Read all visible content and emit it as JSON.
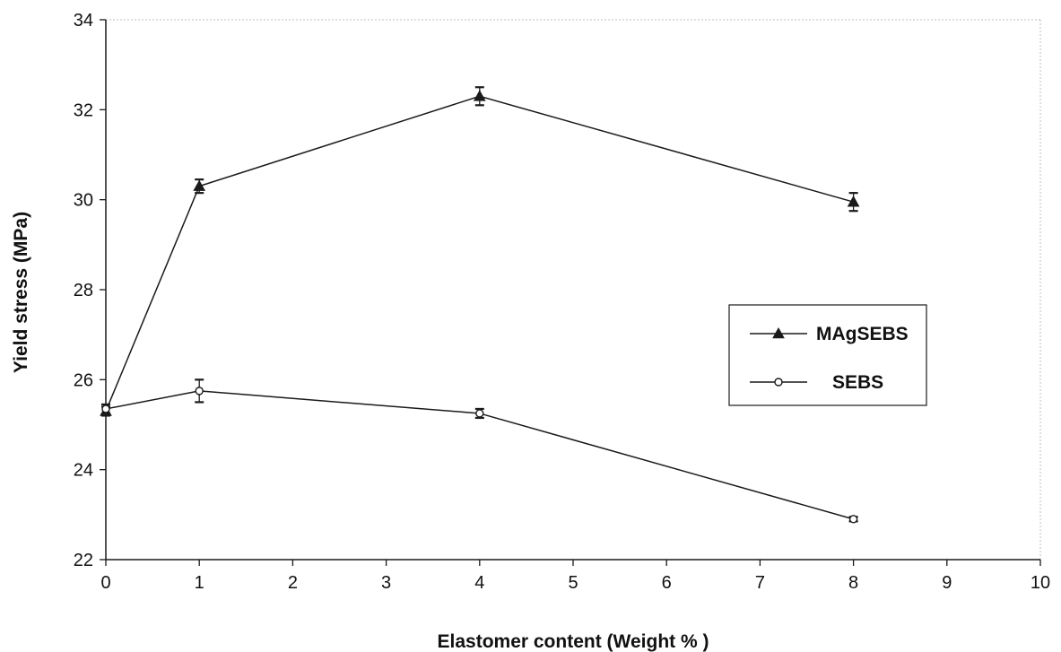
{
  "chart_data": {
    "type": "line",
    "title": "",
    "xlabel": "Elastomer content (Weight % )",
    "ylabel": "Yield stress (MPa)",
    "xlim": [
      0,
      10
    ],
    "ylim": [
      22,
      34
    ],
    "xticks": [
      "0",
      "1",
      "2",
      "3",
      "4",
      "5",
      "6",
      "7",
      "8",
      "9",
      "10"
    ],
    "yticks": [
      "22",
      "24",
      "26",
      "28",
      "30",
      "32",
      "34"
    ],
    "grid": false,
    "legend_position": "center-right",
    "series": [
      {
        "name": "MAgSEBS",
        "marker": "filled-triangle",
        "x": [
          0,
          1,
          4,
          8
        ],
        "y": [
          25.3,
          30.3,
          32.3,
          29.95
        ],
        "error": [
          0.1,
          0.15,
          0.2,
          0.2
        ]
      },
      {
        "name": "SEBS",
        "marker": "open-circle",
        "x": [
          0,
          1,
          4,
          8
        ],
        "y": [
          25.35,
          25.75,
          25.25,
          22.9
        ],
        "error": [
          0.1,
          0.25,
          0.1,
          0.05
        ]
      }
    ],
    "colors": {
      "line": "#1a1a1a",
      "axis": "#1a1a1a",
      "background": "#ffffff"
    }
  }
}
